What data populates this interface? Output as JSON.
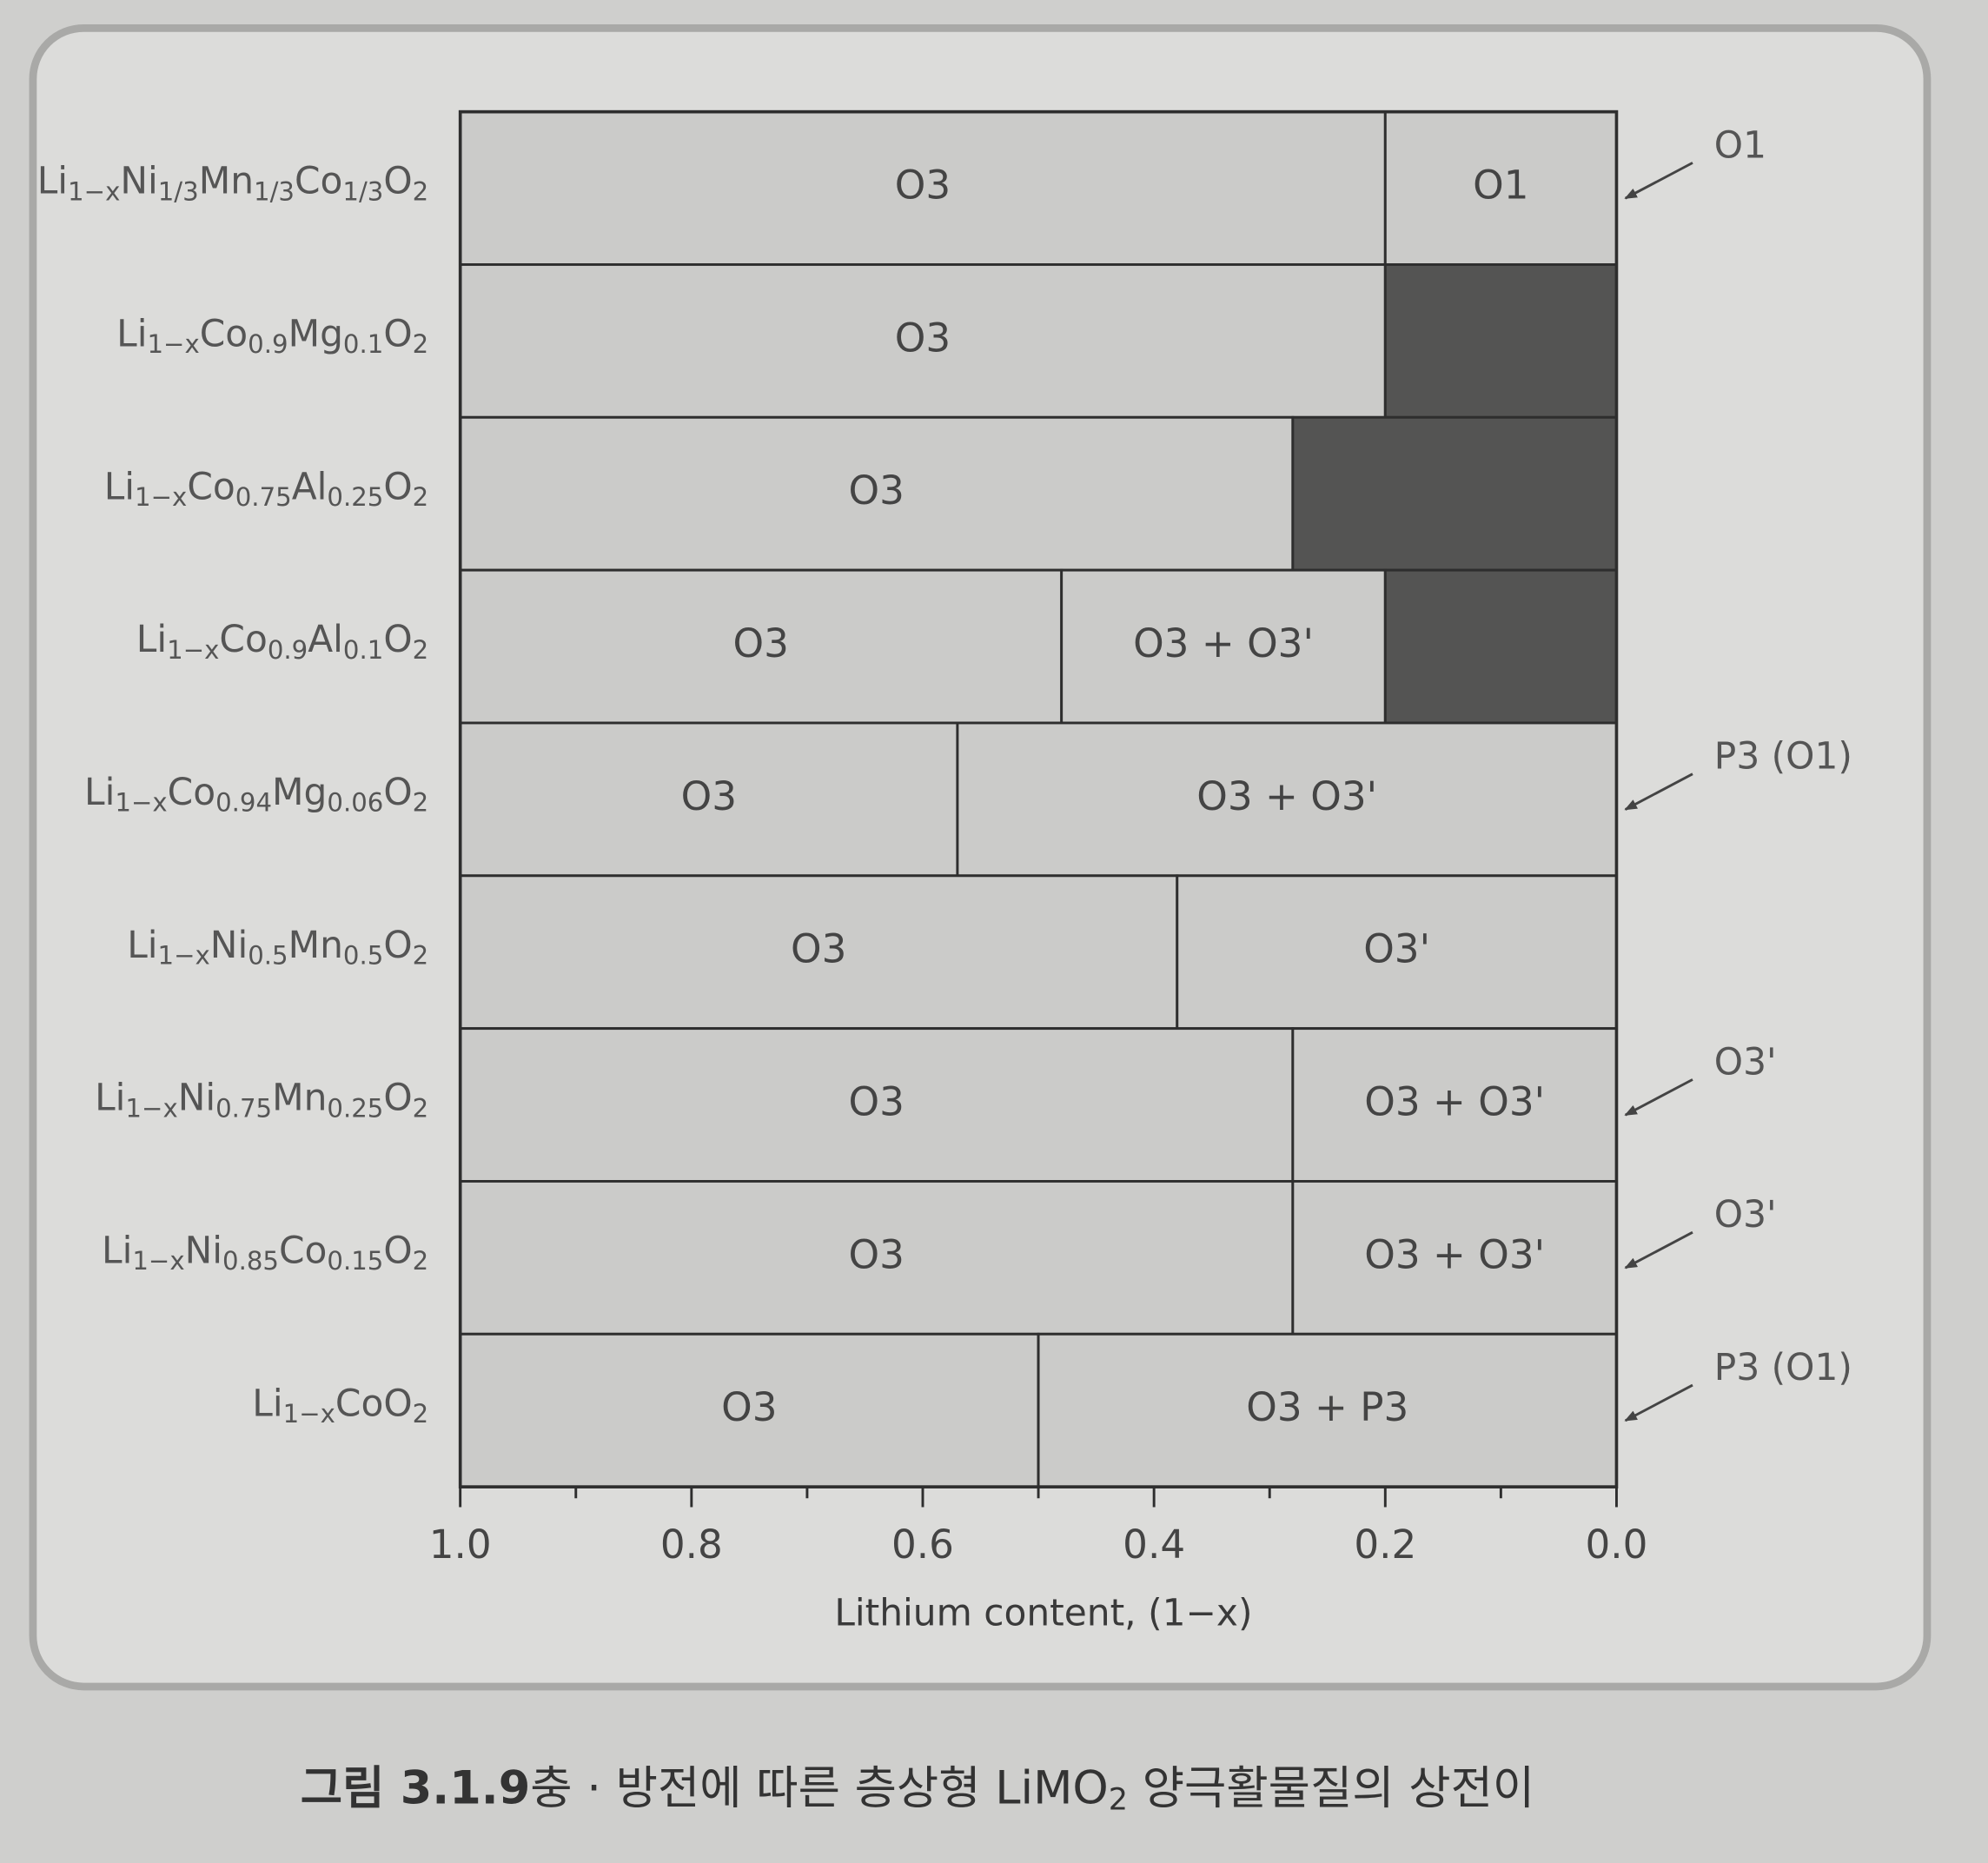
{
  "chart_data": {
    "type": "phase_bar",
    "x_label": "Lithium content, (1−x)",
    "xlim": [
      1,
      0
    ],
    "xticks": [
      {
        "value": 1,
        "label": "1.0"
      },
      0.8,
      0.6,
      0.4,
      0.2,
      {
        "value": 0,
        "label": "0.0"
      }
    ],
    "minor_xticks": [
      0.9,
      0.7,
      0.5,
      0.3,
      0.1
    ],
    "rows": [
      {
        "label": [
          "Li",
          "1−x",
          "Ni",
          "1/3",
          "Mn",
          "1/3",
          "Co",
          "1/3",
          "O",
          "2"
        ],
        "segments": [
          {
            "start": 1,
            "end": 0.2,
            "label": "O3",
            "color": "#cbcbc9"
          },
          {
            "start": 0.2,
            "end": 0,
            "label": "O1",
            "color": "#cbcbc9"
          }
        ],
        "note": "O1"
      },
      {
        "label": [
          "Li",
          "1−x",
          "Co",
          "0.9",
          "Mg",
          "0.1",
          "O",
          "2"
        ],
        "segments": [
          {
            "start": 1,
            "end": 0.2,
            "label": "O3",
            "color": "#cbcbc9"
          },
          {
            "start": 0.2,
            "end": 0,
            "label": null,
            "color": "#545453"
          }
        ]
      },
      {
        "label": [
          "Li",
          "1−x",
          "Co",
          "0.75",
          "Al",
          "0.25",
          "O",
          "2"
        ],
        "segments": [
          {
            "start": 1,
            "end": 0.28,
            "label": "O3",
            "color": "#cbcbc9"
          },
          {
            "start": 0.28,
            "end": 0,
            "label": null,
            "color": "#545453"
          }
        ]
      },
      {
        "label": [
          "Li",
          "1−x",
          "Co",
          "0.9",
          "Al",
          "0.1",
          "O",
          "2"
        ],
        "segments": [
          {
            "start": 1,
            "end": 0.48,
            "label": "O3",
            "color": "#cbcbc9"
          },
          {
            "start": 0.48,
            "end": 0.2,
            "label": "O3 + O3'",
            "color": "#cbcbc9"
          },
          {
            "start": 0.2,
            "end": 0,
            "label": null,
            "color": "#545453"
          }
        ]
      },
      {
        "label": [
          "Li",
          "1−x",
          "Co",
          "0.94",
          "Mg",
          "0.06",
          "O",
          "2"
        ],
        "segments": [
          {
            "start": 1,
            "end": 0.57,
            "label": "O3",
            "color": "#cbcbc9"
          },
          {
            "start": 0.57,
            "end": 0,
            "label": "O3 + O3'",
            "color": "#cbcbc9"
          }
        ],
        "note": "P3 (O1)"
      },
      {
        "label": [
          "Li",
          "1−x",
          "Ni",
          "0.5",
          "Mn",
          "0.5",
          "O",
          "2"
        ],
        "segments": [
          {
            "start": 1,
            "end": 0.38,
            "label": "O3",
            "color": "#cbcbc9"
          },
          {
            "start": 0.38,
            "end": 0,
            "label": "O3'",
            "color": "#cbcbc9"
          }
        ]
      },
      {
        "label": [
          "Li",
          "1−x",
          "Ni",
          "0.75",
          "Mn",
          "0.25",
          "O",
          "2"
        ],
        "segments": [
          {
            "start": 1,
            "end": 0.28,
            "label": "O3",
            "color": "#cbcbc9"
          },
          {
            "start": 0.28,
            "end": 0,
            "label": "O3 + O3'",
            "color": "#cbcbc9"
          }
        ],
        "note": "O3'"
      },
      {
        "label": [
          "Li",
          "1−x",
          "Ni",
          "0.85",
          "Co",
          "0.15",
          "O",
          "2"
        ],
        "segments": [
          {
            "start": 1,
            "end": 0.28,
            "label": "O3",
            "color": "#cbcbc9"
          },
          {
            "start": 0.28,
            "end": 0,
            "label": "O3 + O3'",
            "color": "#cbcbc9"
          }
        ],
        "note": "O3'"
      },
      {
        "label": [
          "Li",
          "1−x",
          "CoO",
          "2"
        ],
        "segments": [
          {
            "start": 1,
            "end": 0.5,
            "label": "O3",
            "color": "#cbcbc9"
          },
          {
            "start": 0.5,
            "end": 0,
            "label": "O3 + P3",
            "color": "#cbcbc9"
          }
        ],
        "note": "P3 (O1)"
      }
    ],
    "caption": {
      "number": "그림 3.1.9",
      "text": [
        "충 · 방전에 따른 층상형 LiMO",
        "2",
        " 양극활물질의 상전이"
      ]
    }
  }
}
